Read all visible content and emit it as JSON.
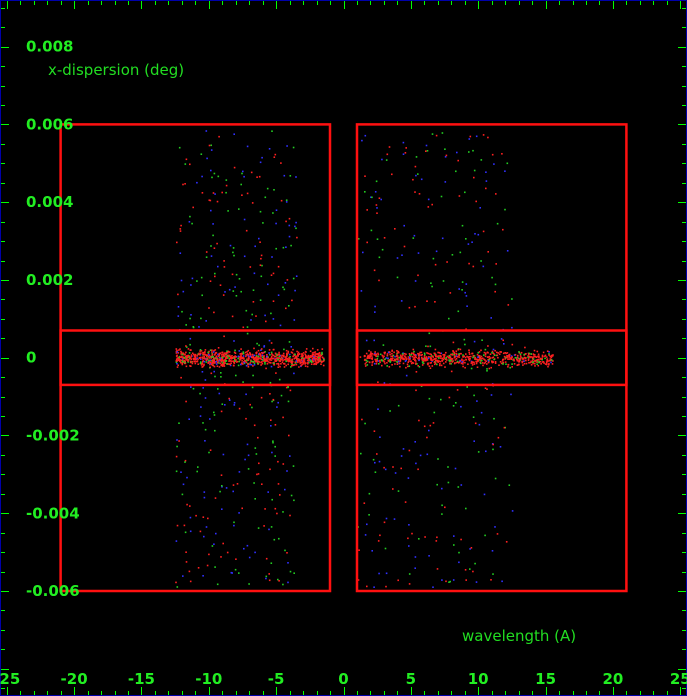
{
  "chart_data": {
    "type": "scatter",
    "title": "",
    "xlabel": "wavelength (A)",
    "ylabel": "x-dispersion (deg)",
    "xlim": [
      -25.5,
      25.5
    ],
    "ylim": [
      -0.0087,
      0.0092
    ],
    "x_ticks": [
      -25,
      -20,
      -15,
      -10,
      -5,
      0,
      5,
      10,
      15,
      20,
      25
    ],
    "x_tick_labels": [
      "-25",
      "-20",
      "-15",
      "-10",
      "-5",
      "0",
      "5",
      "10",
      "15",
      "20",
      "25"
    ],
    "y_ticks": [
      0.008,
      0.006,
      0.004,
      0.002,
      0,
      -0.002,
      -0.004,
      -0.006
    ],
    "y_tick_labels": [
      "0.008",
      "0.006",
      "0.004",
      "0.002",
      "0",
      "-0.002",
      "-0.004",
      "-0.006"
    ],
    "regions": [
      {
        "x": [
          -21,
          -1
        ],
        "y": [
          -0.006,
          0.006
        ]
      },
      {
        "x": [
          1,
          21
        ],
        "y": [
          -0.006,
          0.006
        ]
      },
      {
        "x": [
          -21,
          -1
        ],
        "y": [
          -0.0007,
          0.0007
        ]
      },
      {
        "x": [
          1,
          21
        ],
        "y": [
          -0.0007,
          0.0007
        ]
      }
    ],
    "series": [
      {
        "color": "#ff2020"
      },
      {
        "color": "#22cc22"
      },
      {
        "color": "#3030ff"
      }
    ],
    "point_distribution": {
      "band": {
        "y": [
          -0.0003,
          0.0003
        ],
        "left_x": [
          -12.5,
          -1.5
        ],
        "right_x": [
          1.5,
          15.5
        ]
      },
      "halo": {
        "y": [
          -0.0059,
          0.0059
        ],
        "left_x": [
          -12.5,
          -3.5
        ],
        "right_x": [
          1.0,
          12.5
        ]
      }
    },
    "grid": false,
    "legend": "none",
    "background": "#000000",
    "axis_color": "#00ff00",
    "region_color": "#ff1010",
    "frame_color": "#0000aa"
  }
}
